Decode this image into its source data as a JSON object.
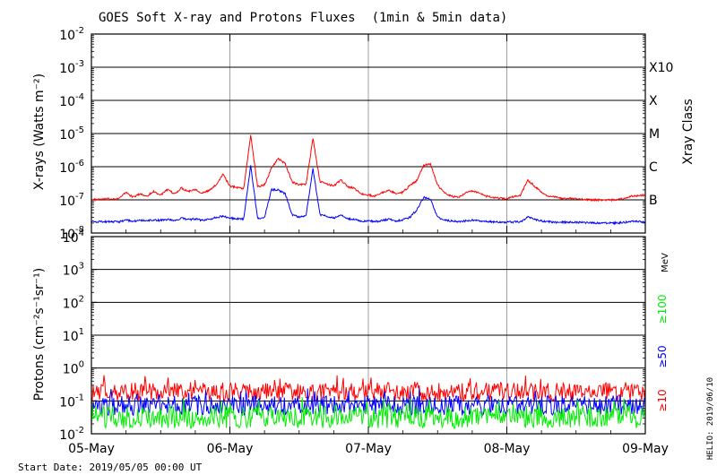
{
  "chart_data": [
    {
      "type": "line",
      "title": "GOES Soft X-ray and Protons Fluxes",
      "title_note": "(1min & 5min data)",
      "ylabel": "X-rays (Watts m⁻²)",
      "right_label": "Xray Class",
      "yscale": "log",
      "ylim": [
        1e-08,
        0.01
      ],
      "grid": true,
      "y_ticks": [
        {
          "value": 1e-08,
          "label_base": "10",
          "label_exp": "-8"
        },
        {
          "value": 1e-07,
          "label_base": "10",
          "label_exp": "-7"
        },
        {
          "value": 1e-06,
          "label_base": "10",
          "label_exp": "-6"
        },
        {
          "value": 1e-05,
          "label_base": "10",
          "label_exp": "-5"
        },
        {
          "value": 0.0001,
          "label_base": "10",
          "label_exp": "-4"
        },
        {
          "value": 0.001,
          "label_base": "10",
          "label_exp": "-3"
        },
        {
          "value": 0.01,
          "label_base": "10",
          "label_exp": "-2"
        }
      ],
      "class_labels": [
        {
          "value": 1e-07,
          "label": "B"
        },
        {
          "value": 1e-06,
          "label": "C"
        },
        {
          "value": 1e-05,
          "label": "M"
        },
        {
          "value": 0.0001,
          "label": "X"
        },
        {
          "value": 0.001,
          "label": "X10"
        }
      ],
      "series": [
        {
          "color": "#ff0000",
          "x": [
            0,
            0.2,
            0.25,
            0.3,
            0.35,
            0.4,
            0.45,
            0.5,
            0.55,
            0.6,
            0.65,
            0.7,
            0.75,
            0.8,
            0.85,
            0.9,
            0.95,
            1.0,
            1.05,
            1.1,
            1.15,
            1.2,
            1.25,
            1.3,
            1.35,
            1.4,
            1.45,
            1.5,
            1.55,
            1.6,
            1.65,
            1.7,
            1.75,
            1.8,
            1.85,
            1.9,
            1.95,
            2.0,
            2.05,
            2.1,
            2.15,
            2.2,
            2.25,
            2.3,
            2.35,
            2.4,
            2.45,
            2.5,
            2.55,
            2.6,
            2.65,
            2.7,
            2.75,
            2.8,
            2.85,
            2.9,
            2.95,
            3.0,
            3.1,
            3.15,
            3.2,
            3.25,
            3.3,
            3.35,
            3.4,
            3.5,
            3.6,
            3.7,
            3.8,
            3.9,
            4.0
          ],
          "y": [
            1e-07,
            1.1e-07,
            1.7e-07,
            1.2e-07,
            1.5e-07,
            1.3e-07,
            1.8e-07,
            1.4e-07,
            2e-07,
            1.5e-07,
            2.3e-07,
            1.8e-07,
            2.1e-07,
            1.6e-07,
            1.9e-07,
            2.8e-07,
            6e-07,
            2.6e-07,
            2.4e-07,
            2.2e-07,
            9e-06,
            2.5e-07,
            2.8e-07,
            9e-07,
            1.8e-06,
            1.2e-06,
            3.5e-07,
            2.8e-07,
            3e-07,
            7e-06,
            3.6e-07,
            3e-07,
            2.6e-07,
            4e-07,
            2.5e-07,
            2.2e-07,
            1.5e-07,
            1.4e-07,
            1.3e-07,
            1.6e-07,
            2e-07,
            1.5e-07,
            1.7e-07,
            2.7e-07,
            3.8e-07,
            1.1e-06,
            1.2e-06,
            2.8e-07,
            1.6e-07,
            1.3e-07,
            1.2e-07,
            1.6e-07,
            1.9e-07,
            1.6e-07,
            1.3e-07,
            1.2e-07,
            1.1e-07,
            1.1e-07,
            1.4e-07,
            4e-07,
            2.6e-07,
            1.7e-07,
            1.3e-07,
            1.2e-07,
            1.1e-07,
            1.1e-07,
            1e-07,
            1e-07,
            1e-07,
            1.3e-07,
            1.4e-07
          ]
        },
        {
          "color": "#0000ff",
          "x": [
            0,
            0.2,
            0.25,
            0.3,
            0.35,
            0.4,
            0.45,
            0.5,
            0.55,
            0.6,
            0.65,
            0.7,
            0.75,
            0.8,
            0.85,
            0.9,
            0.95,
            1.0,
            1.05,
            1.1,
            1.15,
            1.2,
            1.25,
            1.3,
            1.35,
            1.4,
            1.45,
            1.5,
            1.55,
            1.6,
            1.65,
            1.7,
            1.75,
            1.8,
            1.85,
            1.9,
            1.95,
            2.0,
            2.05,
            2.1,
            2.15,
            2.2,
            2.25,
            2.3,
            2.35,
            2.4,
            2.45,
            2.5,
            2.55,
            2.6,
            2.65,
            2.7,
            2.75,
            2.8,
            2.85,
            2.9,
            2.95,
            3.0,
            3.1,
            3.15,
            3.2,
            3.25,
            3.3,
            3.35,
            3.4,
            3.5,
            3.6,
            3.7,
            3.8,
            3.9,
            4.0
          ],
          "y": [
            2.2e-08,
            2.2e-08,
            2.4e-08,
            2.3e-08,
            2.4e-08,
            2.3e-08,
            2.5e-08,
            2.4e-08,
            2.6e-08,
            2.4e-08,
            2.8e-08,
            2.5e-08,
            2.7e-08,
            2.4e-08,
            2.6e-08,
            3e-08,
            3.2e-08,
            2.8e-08,
            2.7e-08,
            2.6e-08,
            1.1e-06,
            2.8e-08,
            3e-08,
            2e-07,
            2e-07,
            1.5e-07,
            3.5e-08,
            3e-08,
            3.2e-08,
            9e-07,
            3.5e-08,
            3.2e-08,
            2.8e-08,
            3.5e-08,
            2.7e-08,
            2.5e-08,
            2.3e-08,
            2.3e-08,
            2.2e-08,
            2.4e-08,
            2.6e-08,
            2.3e-08,
            2.5e-08,
            3e-08,
            5e-08,
            1.2e-07,
            1e-07,
            3e-08,
            2.4e-08,
            2.3e-08,
            2.2e-08,
            2.3e-08,
            2.5e-08,
            2.3e-08,
            2.2e-08,
            2.2e-08,
            2.1e-08,
            2.1e-08,
            2.2e-08,
            3e-08,
            2.6e-08,
            2.3e-08,
            2.2e-08,
            2.1e-08,
            2.1e-08,
            2.1e-08,
            2e-08,
            2e-08,
            2e-08,
            2.2e-08,
            2.2e-08
          ]
        }
      ]
    },
    {
      "type": "line",
      "ylabel": "Protons (cm⁻²s⁻¹sr⁻¹)",
      "yscale": "log",
      "ylim": [
        0.01,
        10000
      ],
      "grid": true,
      "y_ticks": [
        {
          "value": 0.01,
          "label_base": "10",
          "label_exp": "-2"
        },
        {
          "value": 0.1,
          "label_base": "10",
          "label_exp": "-1"
        },
        {
          "value": 1,
          "label_base": "10",
          "label_exp": "0"
        },
        {
          "value": 10,
          "label_base": "10",
          "label_exp": "1"
        },
        {
          "value": 100,
          "label_base": "10",
          "label_exp": "2"
        },
        {
          "value": 1000,
          "label_base": "10",
          "label_exp": "3"
        },
        {
          "value": 10000,
          "label_base": "10",
          "label_exp": "4"
        }
      ],
      "threshold_line": {
        "value": 10,
        "style": "dashed"
      },
      "units_label": "MeV",
      "series": [
        {
          "name": "≥10",
          "color": "#ff0000",
          "level": 0.19,
          "noise": 0.28
        },
        {
          "name": "≥50",
          "color": "#0000ff",
          "level": 0.072,
          "noise": 0.3
        },
        {
          "name": "≥100",
          "color": "#00ee00",
          "level": 0.032,
          "noise": 0.34
        }
      ]
    }
  ],
  "x_axis": {
    "ticks": [
      {
        "value": 0,
        "label": "05-May"
      },
      {
        "value": 1,
        "label": "06-May"
      },
      {
        "value": 2,
        "label": "07-May"
      },
      {
        "value": 3,
        "label": "08-May"
      },
      {
        "value": 4,
        "label": "09-May"
      }
    ],
    "xlim": [
      0,
      4
    ]
  },
  "footer": {
    "start_date": "Start Date: 2019/05/05 00:00 UT",
    "credit": "HELIO: 2019/06/10"
  },
  "colors": {
    "grid": "#000000",
    "day_lines": "#a0a0a0",
    "axes": "#000000"
  }
}
